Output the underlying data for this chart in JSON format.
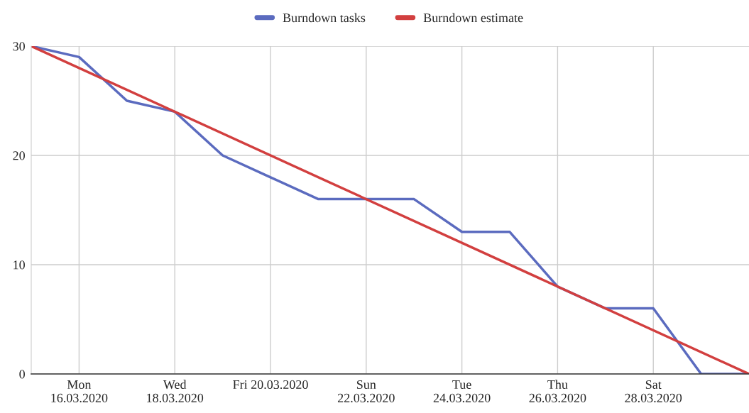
{
  "chart_data": {
    "type": "line",
    "x": [
      "2020-03-15",
      "2020-03-16",
      "2020-03-17",
      "2020-03-18",
      "2020-03-19",
      "2020-03-20",
      "2020-03-21",
      "2020-03-22",
      "2020-03-23",
      "2020-03-24",
      "2020-03-25",
      "2020-03-26",
      "2020-03-27",
      "2020-03-28",
      "2020-03-29",
      "2020-03-30"
    ],
    "series": [
      {
        "name": "Burndown tasks",
        "color": "#5b6bbf",
        "values": [
          30,
          29,
          25,
          24,
          20,
          18,
          16,
          16,
          16,
          13,
          13,
          8,
          6,
          6,
          0,
          0
        ]
      },
      {
        "name": "Burndown estimate",
        "color": "#d23f3f",
        "x": [
          "2020-03-15",
          "2020-03-30"
        ],
        "values": [
          30,
          0
        ]
      }
    ],
    "xlim": [
      "2020-03-15",
      "2020-03-30"
    ],
    "xticks": [
      {
        "value": "2020-03-16",
        "label": "Mon\n16.03.2020"
      },
      {
        "value": "2020-03-18",
        "label": "Wed\n18.03.2020"
      },
      {
        "value": "2020-03-20",
        "label": "Fri 20.03.2020"
      },
      {
        "value": "2020-03-22",
        "label": "Sun\n22.03.2020"
      },
      {
        "value": "2020-03-24",
        "label": "Tue\n24.03.2020"
      },
      {
        "value": "2020-03-26",
        "label": "Thu\n26.03.2020"
      },
      {
        "value": "2020-03-28",
        "label": "Sat\n28.03.2020"
      }
    ],
    "ylim": [
      0,
      30
    ],
    "yticks": [
      0,
      10,
      20,
      30
    ],
    "grid": true,
    "legend": "top",
    "marker": "none",
    "line_style": "solid"
  }
}
